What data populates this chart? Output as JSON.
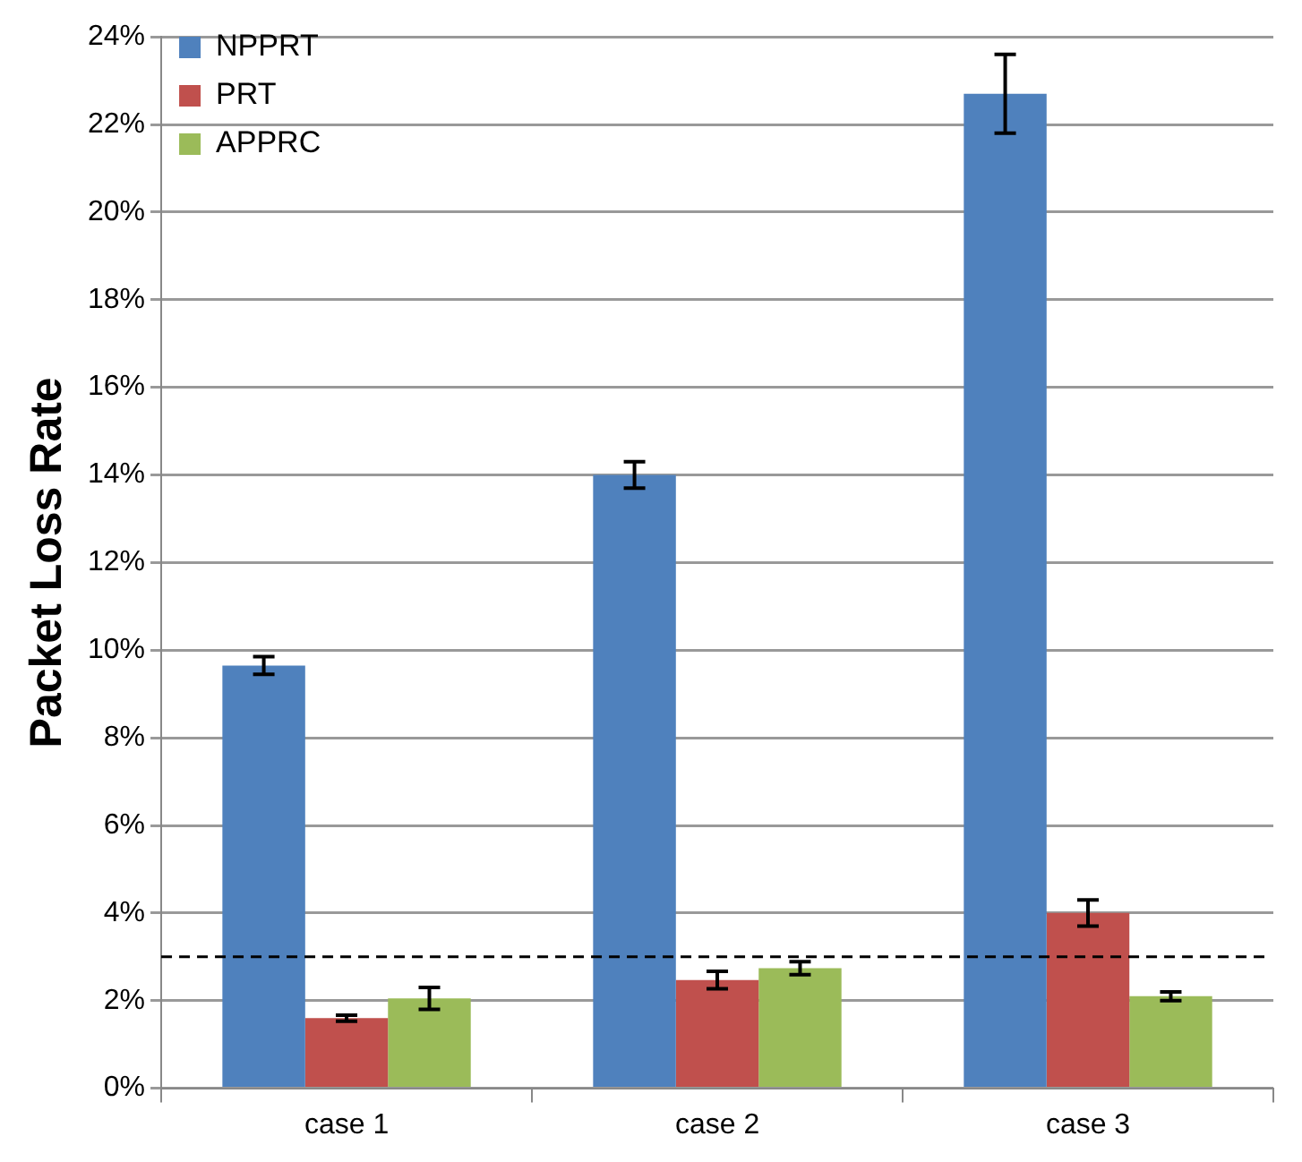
{
  "chart_data": {
    "type": "bar",
    "ylabel": "Packet Loss Rate",
    "categories": [
      "case 1",
      "case 2",
      "case 3"
    ],
    "series": [
      {
        "name": "NPPRT",
        "color": "#4f81bd",
        "values": [
          9.65,
          14.0,
          22.7
        ],
        "errors": [
          0.2,
          0.3,
          0.9
        ]
      },
      {
        "name": "PRT",
        "color": "#c0504d",
        "values": [
          1.6,
          2.47,
          4.0
        ],
        "errors": [
          0.07,
          0.2,
          0.3
        ]
      },
      {
        "name": "APPRC",
        "color": "#9bbb59",
        "values": [
          2.05,
          2.74,
          2.1
        ],
        "errors": [
          0.25,
          0.15,
          0.1
        ]
      }
    ],
    "ylim": [
      0,
      24
    ],
    "yticks": [
      {
        "value": 0,
        "label": "0%"
      },
      {
        "value": 2,
        "label": "2%"
      },
      {
        "value": 4,
        "label": "4%"
      },
      {
        "value": 6,
        "label": "6%"
      },
      {
        "value": 8,
        "label": "8%"
      },
      {
        "value": 10,
        "label": "10%"
      },
      {
        "value": 12,
        "label": "12%"
      },
      {
        "value": 14,
        "label": "14%"
      },
      {
        "value": 16,
        "label": "16%"
      },
      {
        "value": 18,
        "label": "18%"
      },
      {
        "value": 20,
        "label": "20%"
      },
      {
        "value": 22,
        "label": "22%"
      },
      {
        "value": 24,
        "label": "24%"
      }
    ],
    "ref_lines": [
      {
        "axis": "y",
        "value": 3,
        "color": "#000000",
        "line_style": "dashed"
      }
    ],
    "grid": "y",
    "legend": "top left"
  }
}
